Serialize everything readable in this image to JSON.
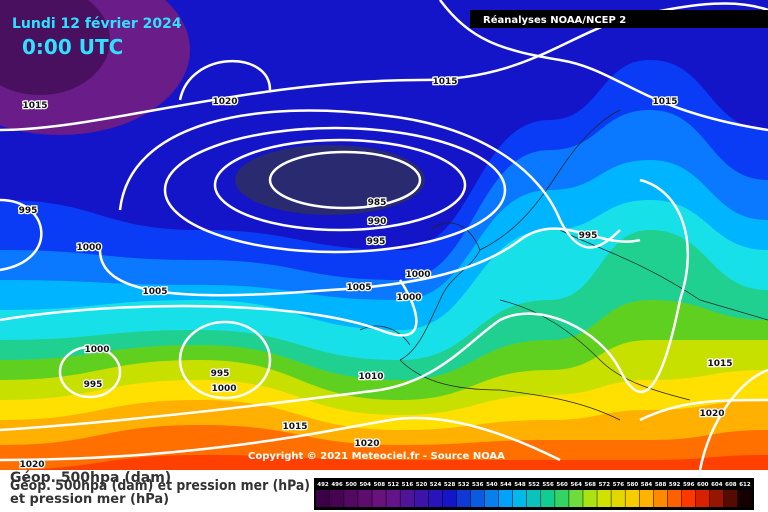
{
  "header": {
    "title": "Lundi 12 février 2024",
    "time": "0:00 UTC",
    "source": "Réanalyses NOAA/NCEP 2"
  },
  "copyright": "Copyright © 2021 Meteociel.fr - Source NOAA",
  "legend": {
    "line1": "Géop. 500hpa (dam)",
    "line2": "Géop. 500hpa (dam) et pression mer (hPa)",
    "line3": "et pression mer (hPa)",
    "scale": [
      "492",
      "496",
      "500",
      "504",
      "508",
      "512",
      "516",
      "520",
      "524",
      "528",
      "532",
      "536",
      "540",
      "544",
      "548",
      "552",
      "556",
      "560",
      "564",
      "568",
      "572",
      "576",
      "580",
      "584",
      "588",
      "592",
      "596",
      "600",
      "604",
      "608",
      "612"
    ]
  },
  "contour_labels": [
    "1015",
    "1020",
    "1015",
    "1015",
    "995",
    "985",
    "990",
    "995",
    "1000",
    "995",
    "1000",
    "1005",
    "1005",
    "1000",
    "1000",
    "995",
    "995",
    "1000",
    "1010",
    "1015",
    "1020",
    "1015",
    "1020",
    "1020"
  ]
}
